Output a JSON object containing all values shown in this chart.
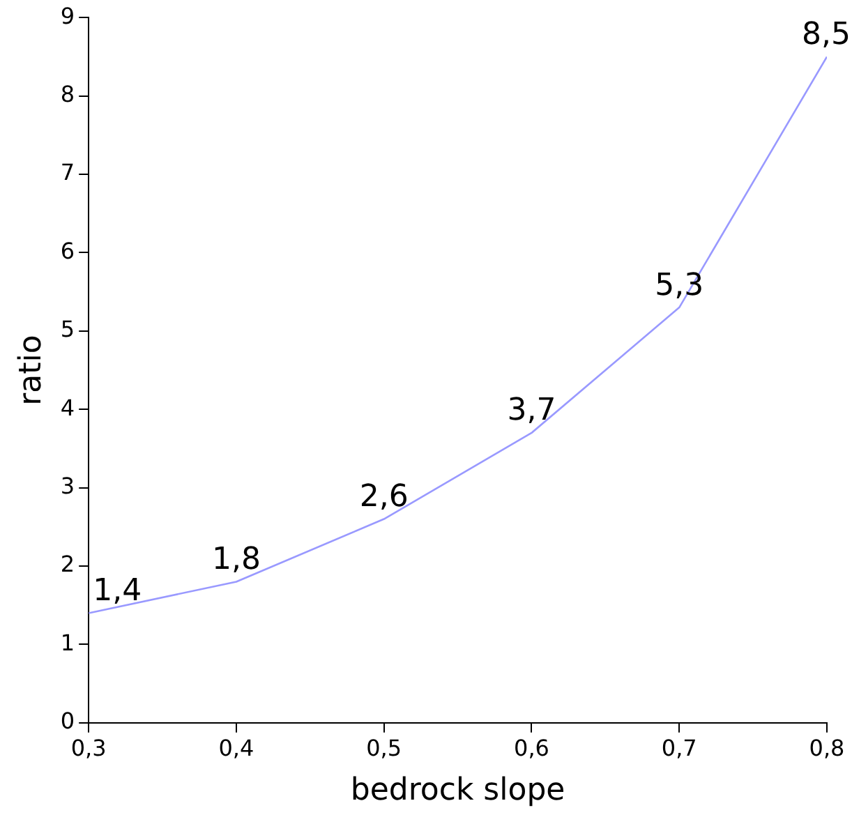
{
  "chart_data": {
    "type": "line",
    "xlabel": "bedrock slope",
    "ylabel": "ratio",
    "x": [
      0.3,
      0.4,
      0.5,
      0.6,
      0.7,
      0.8
    ],
    "series": [
      {
        "color": "#9999ff",
        "values": [
          1.4,
          1.8,
          2.6,
          3.7,
          5.3,
          8.5
        ],
        "value_labels": [
          "1,4",
          "1,8",
          "2,6",
          "3,7",
          "5,3",
          "8,5"
        ]
      }
    ],
    "xlim": [
      0.3,
      0.8
    ],
    "xticks": [
      {
        "value": 0.3,
        "label": "0,3"
      },
      {
        "value": 0.4,
        "label": "0,4"
      },
      {
        "value": 0.5,
        "label": "0,5"
      },
      {
        "value": 0.6,
        "label": "0,6"
      },
      {
        "value": 0.7,
        "label": "0,7"
      },
      {
        "value": 0.8,
        "label": "0,8"
      }
    ],
    "ylim": [
      0,
      9
    ],
    "yticks": [
      0,
      1,
      2,
      3,
      4,
      5,
      6,
      7,
      8,
      9
    ],
    "grid": false,
    "legend": false,
    "marker": "none",
    "line_style": "solid"
  }
}
